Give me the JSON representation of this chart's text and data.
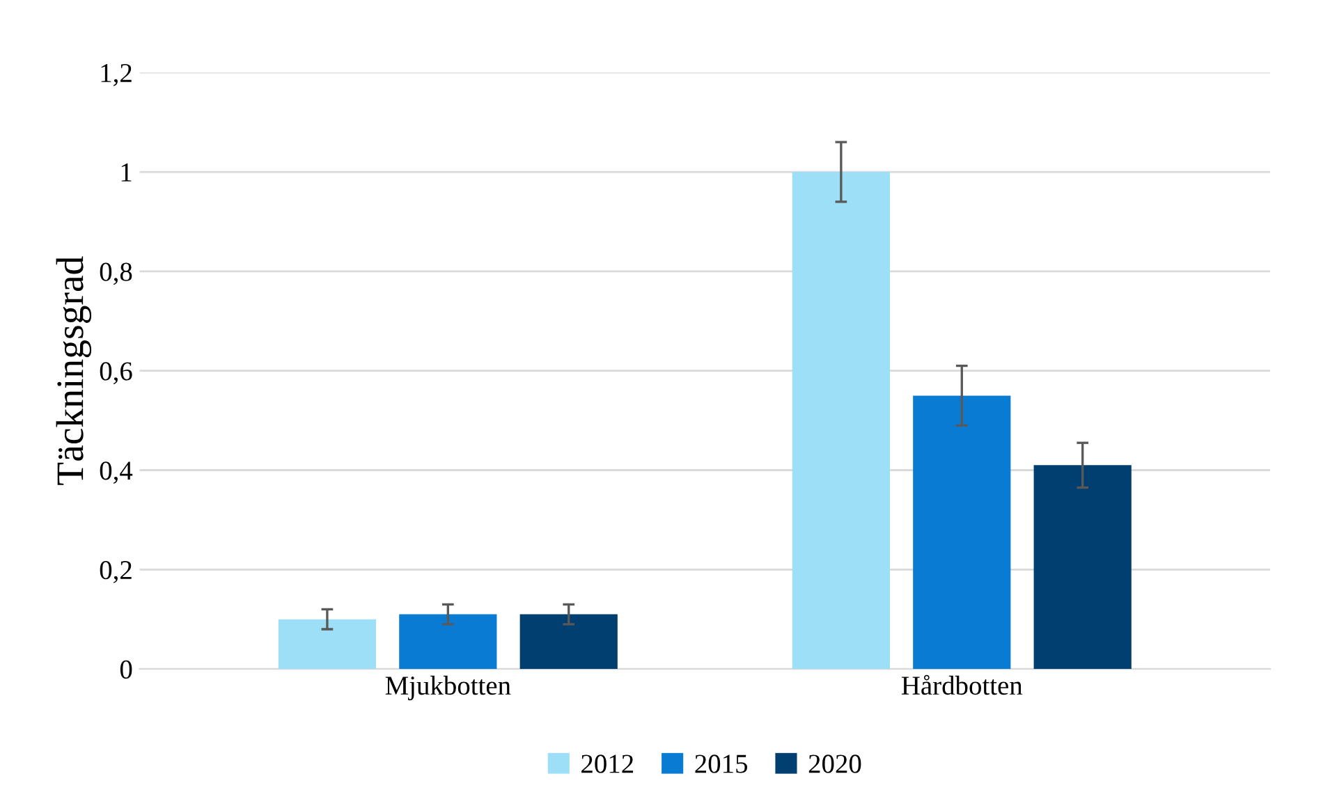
{
  "chart_data": {
    "type": "bar",
    "ylabel": "Täckningsgrad",
    "categories": [
      "Mjukbotten",
      "Hårdbotten"
    ],
    "series": [
      {
        "name": "2012",
        "color": "#9ddff6",
        "values": [
          0.1,
          1.0
        ],
        "errors": [
          0.02,
          0.06
        ]
      },
      {
        "name": "2015",
        "color": "#0a7bd3",
        "values": [
          0.11,
          0.55
        ],
        "errors": [
          0.02,
          0.06
        ]
      },
      {
        "name": "2020",
        "color": "#003f6f",
        "values": [
          0.11,
          0.41
        ],
        "errors": [
          0.02,
          0.045
        ]
      }
    ],
    "ylim": [
      0,
      1.2
    ],
    "yticks": [
      {
        "value": 0,
        "label": "0"
      },
      {
        "value": 0.2,
        "label": "0,2"
      },
      {
        "value": 0.4,
        "label": "0,4"
      },
      {
        "value": 0.6,
        "label": "0,6"
      },
      {
        "value": 0.8,
        "label": "0,8"
      },
      {
        "value": 1,
        "label": "1"
      },
      {
        "value": 1.2,
        "label": "1,2"
      }
    ],
    "grid": "y",
    "legend": "bottom"
  }
}
